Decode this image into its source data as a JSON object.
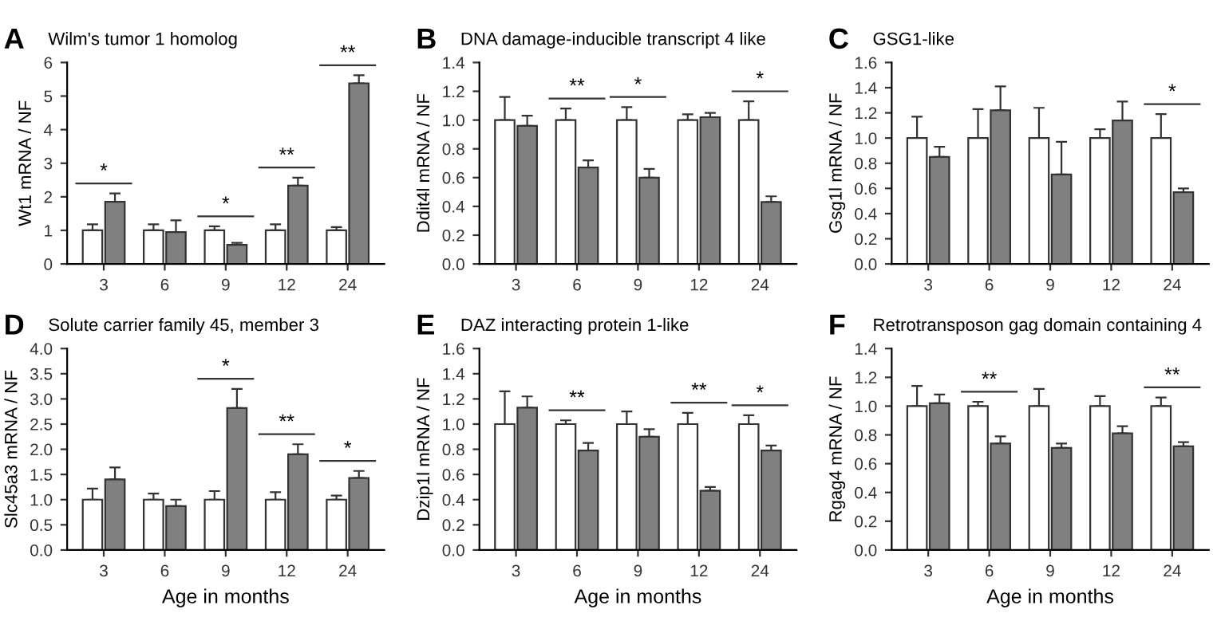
{
  "chart_data": [
    {
      "type": "bar",
      "title": "Wilm's tumor 1 homolog",
      "ylabel": "Wt1 mRNA / NF",
      "categories": [
        "3",
        "6",
        "9",
        "12",
        "24"
      ],
      "ylim": [
        0,
        6
      ],
      "yticks": [
        0,
        1,
        2,
        3,
        4,
        5,
        6
      ],
      "grid": false,
      "legend": false,
      "series": [
        {
          "color": "#ffffff",
          "values": [
            1.0,
            1.0,
            1.0,
            1.0,
            1.0
          ],
          "errors": [
            [
              1.0,
              1.18
            ],
            [
              1.0,
              1.18
            ],
            [
              1.0,
              1.12
            ],
            [
              1.0,
              1.18
            ],
            [
              1.0,
              1.1
            ]
          ]
        },
        {
          "color": "#808080",
          "values": [
            1.85,
            0.95,
            0.57,
            2.33,
            5.38
          ],
          "errors": [
            [
              1.85,
              2.1
            ],
            [
              0.95,
              1.3
            ],
            [
              0.57,
              0.63
            ],
            [
              2.33,
              2.57
            ],
            [
              5.38,
              5.62
            ]
          ]
        }
      ],
      "annotations": [
        "A",
        {
          "text": "*",
          "x": "3",
          "y": 2.1
        },
        {
          "text": "*",
          "x": "9",
          "y": 1.12
        },
        {
          "text": "**",
          "x": "12",
          "y": 2.57
        },
        {
          "text": "**",
          "x": "24",
          "y": 5.62
        }
      ]
    },
    {
      "type": "bar",
      "title": "DNA damage-inducible transcript 4 like",
      "ylabel": "Ddit4l mRNA / NF",
      "categories": [
        "3",
        "6",
        "9",
        "12",
        "24"
      ],
      "ylim": [
        0,
        1.4
      ],
      "yticks": [
        {
          "value": 0,
          "label": "0.0"
        },
        0.2,
        0.4,
        0.6,
        0.8,
        {
          "value": 1,
          "label": "1.0"
        },
        1.2,
        1.4
      ],
      "grid": false,
      "legend": false,
      "series": [
        {
          "color": "#ffffff",
          "values": [
            1.0,
            1.0,
            1.0,
            1.0,
            1.0
          ],
          "errors": [
            [
              1.0,
              1.16
            ],
            [
              1.0,
              1.08
            ],
            [
              1.0,
              1.09
            ],
            [
              1.0,
              1.04
            ],
            [
              1.0,
              1.13
            ]
          ]
        },
        {
          "color": "#808080",
          "values": [
            0.96,
            0.67,
            0.6,
            1.02,
            0.43
          ],
          "errors": [
            [
              0.96,
              1.03
            ],
            [
              0.67,
              0.72
            ],
            [
              0.6,
              0.66
            ],
            [
              1.02,
              1.05
            ],
            [
              0.43,
              0.47
            ]
          ]
        }
      ],
      "annotations": [
        "B",
        {
          "text": "**",
          "x": "6",
          "y": 1.08
        },
        {
          "text": "*",
          "x": "9",
          "y": 1.09
        },
        {
          "text": "*",
          "x": "24",
          "y": 1.13
        }
      ]
    },
    {
      "type": "bar",
      "title": "GSG1-like",
      "ylabel": "Gsg1l mRNA / NF",
      "categories": [
        "3",
        "6",
        "9",
        "12",
        "24"
      ],
      "ylim": [
        0,
        1.6
      ],
      "yticks": [
        {
          "value": 0,
          "label": "0.0"
        },
        0.2,
        0.4,
        0.6,
        0.8,
        {
          "value": 1,
          "label": "1.0"
        },
        1.2,
        1.4,
        1.6
      ],
      "grid": false,
      "legend": false,
      "series": [
        {
          "color": "#ffffff",
          "values": [
            1.0,
            1.0,
            1.0,
            1.0,
            1.0
          ],
          "errors": [
            [
              1.0,
              1.17
            ],
            [
              1.0,
              1.23
            ],
            [
              1.0,
              1.24
            ],
            [
              1.0,
              1.07
            ],
            [
              1.0,
              1.19
            ]
          ]
        },
        {
          "color": "#808080",
          "values": [
            0.85,
            1.22,
            0.71,
            1.14,
            0.57
          ],
          "errors": [
            [
              0.85,
              0.93
            ],
            [
              1.22,
              1.41
            ],
            [
              0.71,
              0.97
            ],
            [
              1.14,
              1.29
            ],
            [
              0.57,
              0.6
            ]
          ]
        }
      ],
      "annotations": [
        "C",
        {
          "text": "*",
          "x": "24",
          "y": 1.19
        }
      ]
    },
    {
      "type": "bar",
      "title": "Solute carrier family 45, member 3",
      "ylabel": "Slc45a3 mRNA / NF",
      "xlabel": "Age in months",
      "categories": [
        "3",
        "6",
        "9",
        "12",
        "24"
      ],
      "ylim": [
        0,
        4
      ],
      "yticks": [
        {
          "value": 0,
          "label": "0.0"
        },
        0.5,
        {
          "value": 1,
          "label": "1.0"
        },
        1.5,
        {
          "value": 2,
          "label": "2.0"
        },
        2.5,
        {
          "value": 3,
          "label": "3.0"
        },
        3.5,
        {
          "value": 4,
          "label": "4.0"
        }
      ],
      "grid": false,
      "legend": false,
      "series": [
        {
          "color": "#ffffff",
          "values": [
            1.0,
            1.0,
            1.0,
            1.0,
            1.0
          ],
          "errors": [
            [
              1.0,
              1.22
            ],
            [
              1.0,
              1.12
            ],
            [
              1.0,
              1.17
            ],
            [
              1.0,
              1.15
            ],
            [
              1.0,
              1.08
            ]
          ]
        },
        {
          "color": "#808080",
          "values": [
            1.4,
            0.87,
            2.82,
            1.9,
            1.43
          ],
          "errors": [
            [
              1.4,
              1.64
            ],
            [
              0.87,
              1.0
            ],
            [
              2.82,
              3.2
            ],
            [
              1.9,
              2.1
            ],
            [
              1.43,
              1.57
            ]
          ]
        }
      ],
      "annotations": [
        "D",
        {
          "text": "*",
          "x": "9",
          "y": 3.2
        },
        {
          "text": "**",
          "x": "12",
          "y": 2.1
        },
        {
          "text": "*",
          "x": "24",
          "y": 1.57
        }
      ]
    },
    {
      "type": "bar",
      "title": "DAZ interacting protein 1-like",
      "ylabel": "Dzip1l mRNA / NF",
      "xlabel": "Age in months",
      "categories": [
        "3",
        "6",
        "9",
        "12",
        "24"
      ],
      "ylim": [
        0,
        1.6
      ],
      "yticks": [
        {
          "value": 0,
          "label": "0.0"
        },
        0.2,
        0.4,
        0.6,
        0.8,
        {
          "value": 1,
          "label": "1.0"
        },
        1.2,
        1.4,
        1.6
      ],
      "grid": false,
      "legend": false,
      "series": [
        {
          "color": "#ffffff",
          "values": [
            1.0,
            1.0,
            1.0,
            1.0,
            1.0
          ],
          "errors": [
            [
              1.0,
              1.26
            ],
            [
              1.0,
              1.03
            ],
            [
              1.0,
              1.1
            ],
            [
              1.0,
              1.09
            ],
            [
              1.0,
              1.07
            ]
          ]
        },
        {
          "color": "#808080",
          "values": [
            1.13,
            0.79,
            0.9,
            0.47,
            0.79
          ],
          "errors": [
            [
              1.13,
              1.22
            ],
            [
              0.79,
              0.85
            ],
            [
              0.9,
              0.96
            ],
            [
              0.47,
              0.5
            ],
            [
              0.79,
              0.83
            ]
          ]
        }
      ],
      "annotations": [
        "E",
        {
          "text": "**",
          "x": "6",
          "y": 1.03
        },
        {
          "text": "**",
          "x": "12",
          "y": 1.09
        },
        {
          "text": "*",
          "x": "24",
          "y": 1.07
        }
      ]
    },
    {
      "type": "bar",
      "title": "Retrotransposon gag domain containing 4",
      "ylabel": "Rgag4 mRNA / NF",
      "xlabel": "Age in months",
      "categories": [
        "3",
        "6",
        "9",
        "12",
        "24"
      ],
      "ylim": [
        0,
        1.4
      ],
      "yticks": [
        {
          "value": 0,
          "label": "0.0"
        },
        0.2,
        0.4,
        0.6,
        0.8,
        {
          "value": 1,
          "label": "1.0"
        },
        1.2,
        1.4
      ],
      "grid": false,
      "legend": false,
      "series": [
        {
          "color": "#ffffff",
          "values": [
            1.0,
            1.0,
            1.0,
            1.0,
            1.0
          ],
          "errors": [
            [
              1.0,
              1.14
            ],
            [
              1.0,
              1.03
            ],
            [
              1.0,
              1.12
            ],
            [
              1.0,
              1.07
            ],
            [
              1.0,
              1.06
            ]
          ]
        },
        {
          "color": "#808080",
          "values": [
            1.02,
            0.74,
            0.71,
            0.81,
            0.72
          ],
          "errors": [
            [
              1.02,
              1.08
            ],
            [
              0.74,
              0.79
            ],
            [
              0.71,
              0.74
            ],
            [
              0.81,
              0.86
            ],
            [
              0.72,
              0.75
            ]
          ]
        }
      ],
      "annotations": [
        "F",
        {
          "text": "**",
          "x": "6",
          "y": 1.03
        },
        {
          "text": "**",
          "x": "24",
          "y": 1.06
        }
      ]
    }
  ]
}
